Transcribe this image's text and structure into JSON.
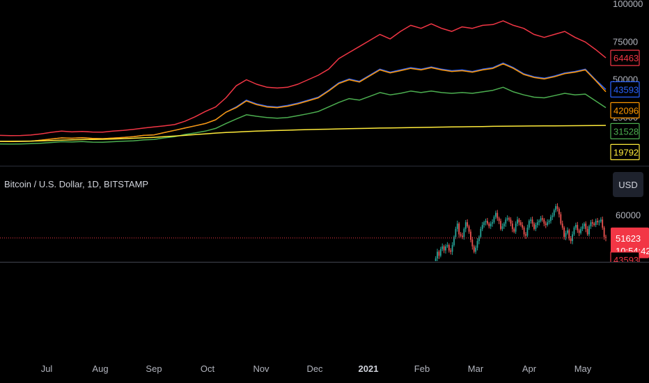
{
  "symbol": {
    "title": "Bitcoin / U.S. Dollar, 1D, BITSTAMP",
    "currency": "USD"
  },
  "colors": {
    "background": "#000000",
    "red": "#f23645",
    "blue": "#2962ff",
    "orange": "#ff9800",
    "green": "#4caf50",
    "yellow": "#ffeb3b",
    "up": "#26a69a",
    "down": "#ef5350",
    "axis_text": "#b2b5be",
    "divider": "#2a2e39"
  },
  "chart_data": [
    {
      "type": "line",
      "pane": "upper",
      "x_labels": [
        "Jul",
        "Aug",
        "Sep",
        "Oct",
        "Nov",
        "Dec",
        "2021",
        "Feb",
        "Mar",
        "Apr",
        "May"
      ],
      "y_ticks": [
        0,
        25000,
        50000,
        75000,
        100000
      ],
      "y_tick_labels": [
        "0",
        "25000",
        "50000",
        "75000",
        "100000"
      ],
      "ylim": [
        0,
        100000
      ],
      "series": [
        {
          "color": "#f23645",
          "last_label": "64463",
          "values": [
            13200,
            13000,
            13100,
            13400,
            14200,
            15200,
            16000,
            15500,
            15800,
            15400,
            15300,
            16000,
            16500,
            17200,
            18000,
            18800,
            19500,
            20300,
            22500,
            25500,
            29000,
            32000,
            38000,
            46000,
            50000,
            47000,
            45000,
            44500,
            45000,
            47000,
            50000,
            53000,
            57000,
            64000,
            68000,
            72000,
            76000,
            80000,
            77000,
            82000,
            86000,
            84000,
            87000,
            84000,
            82000,
            85000,
            84000,
            86000,
            86500,
            89000,
            86000,
            84000,
            80000,
            78000,
            80000,
            82000,
            78000,
            75000,
            70000,
            64463
          ]
        },
        {
          "color": "#2962ff",
          "last_label": "43593",
          "values": [
            9200,
            9100,
            9200,
            9300,
            10000,
            10800,
            11500,
            11300,
            11600,
            11200,
            11000,
            11400,
            11800,
            12300,
            13200,
            13500,
            15000,
            16500,
            18000,
            19500,
            21000,
            23500,
            28500,
            32000,
            36500,
            34000,
            32500,
            32000,
            33000,
            34500,
            36500,
            38500,
            43000,
            48000,
            50500,
            49000,
            53000,
            57000,
            55000,
            56500,
            58000,
            57000,
            58500,
            57000,
            56000,
            56500,
            55500,
            57000,
            58000,
            61000,
            58000,
            54000,
            52000,
            51000,
            52500,
            54500,
            55500,
            57000,
            50000,
            43593
          ]
        },
        {
          "color": "#ff9800",
          "last_label": "42096",
          "values": [
            9200,
            9100,
            9200,
            9300,
            10000,
            10800,
            11500,
            11300,
            11600,
            11200,
            11000,
            11400,
            11800,
            12300,
            13200,
            13500,
            15000,
            16500,
            18000,
            19500,
            21000,
            23500,
            28500,
            31500,
            36000,
            33500,
            32000,
            31500,
            32500,
            34000,
            36000,
            38000,
            42500,
            47500,
            50000,
            48500,
            52500,
            56500,
            54500,
            56000,
            57500,
            56500,
            58000,
            56500,
            55500,
            56000,
            55000,
            56500,
            57500,
            60500,
            57500,
            53500,
            51500,
            50500,
            52000,
            54000,
            55000,
            56500,
            49500,
            42096
          ]
        },
        {
          "color": "#4caf50",
          "last_label": "31528",
          "values": [
            7500,
            7400,
            7500,
            7700,
            8000,
            8500,
            9000,
            8800,
            9100,
            8700,
            8600,
            9000,
            9300,
            9600,
            10200,
            10500,
            11500,
            12300,
            13800,
            14800,
            16000,
            17800,
            21000,
            24000,
            26800,
            25800,
            25000,
            24500,
            25000,
            26200,
            27500,
            29000,
            32000,
            35000,
            37500,
            36500,
            39000,
            41500,
            40000,
            41000,
            42500,
            41500,
            42500,
            41500,
            41000,
            41500,
            41000,
            42000,
            43000,
            45000,
            42000,
            40000,
            38500,
            38000,
            39500,
            41000,
            40000,
            40500,
            36000,
            31528
          ]
        },
        {
          "color": "#ffeb3b",
          "last_label": "19792",
          "values": [
            9200,
            9250,
            9300,
            9400,
            9600,
            9800,
            10000,
            10200,
            10400,
            10500,
            10600,
            10800,
            11000,
            11300,
            11600,
            11900,
            12300,
            12700,
            13200,
            13700,
            14200,
            14700,
            15100,
            15400,
            15700,
            16000,
            16200,
            16400,
            16600,
            16800,
            17000,
            17150,
            17300,
            17450,
            17600,
            17750,
            17900,
            18000,
            18100,
            18200,
            18350,
            18450,
            18550,
            18650,
            18750,
            18850,
            18950,
            19050,
            19150,
            19250,
            19300,
            19350,
            19400,
            19450,
            19500,
            19550,
            19600,
            19650,
            19700,
            19792
          ]
        }
      ]
    },
    {
      "type": "candlestick",
      "pane": "lower",
      "y_ticks": [
        60000
      ],
      "y_tick_labels": [
        "60000"
      ],
      "ylim": [
        43000,
        63000
      ],
      "current_price": {
        "value": 51623,
        "label": "51623",
        "countdown": "10:54:42"
      },
      "partial_label": "43593",
      "closes": [
        29500,
        31000,
        33500,
        35200,
        34000,
        33000,
        31500,
        36000,
        37500,
        35500,
        34000,
        33800,
        32500,
        33800,
        35500,
        35000,
        34000,
        33000,
        31500,
        32500,
        34000,
        31800,
        30800,
        32000,
        33000,
        31200,
        30800,
        30500,
        31800,
        33000,
        34500,
        36000,
        37000,
        39000,
        40000,
        38500,
        39500,
        44000,
        46500,
        45000,
        47500,
        48500,
        47000,
        48500,
        49000,
        47000,
        46500,
        49000,
        52000,
        55000,
        57000,
        53000,
        52500,
        52000,
        55000,
        57500,
        56000,
        54000,
        51000,
        48500,
        46500,
        48000,
        50500,
        52000,
        55000,
        56500,
        57500,
        58000,
        57000,
        56000,
        57000,
        57500,
        59500,
        61000,
        59000,
        58000,
        55000,
        56000,
        57000,
        58500,
        59000,
        58500,
        57000,
        55000,
        54000,
        57000,
        58500,
        57500,
        56500,
        55500,
        53000,
        52500,
        55500,
        58000,
        58500,
        57000,
        55000,
        56500,
        57500,
        58000,
        59000,
        58500,
        57000,
        56500,
        57500,
        58000,
        59500,
        60000,
        62000,
        63500,
        62500,
        60500,
        57000,
        55500,
        52000,
        53500,
        54500,
        51500,
        50500,
        53000,
        55500,
        56500,
        54500,
        53500,
        55000,
        56000,
        57000,
        55000,
        53000,
        56000,
        57500,
        57000,
        56500,
        58000,
        57500,
        57800,
        58500,
        55500,
        52000,
        51623
      ]
    }
  ]
}
